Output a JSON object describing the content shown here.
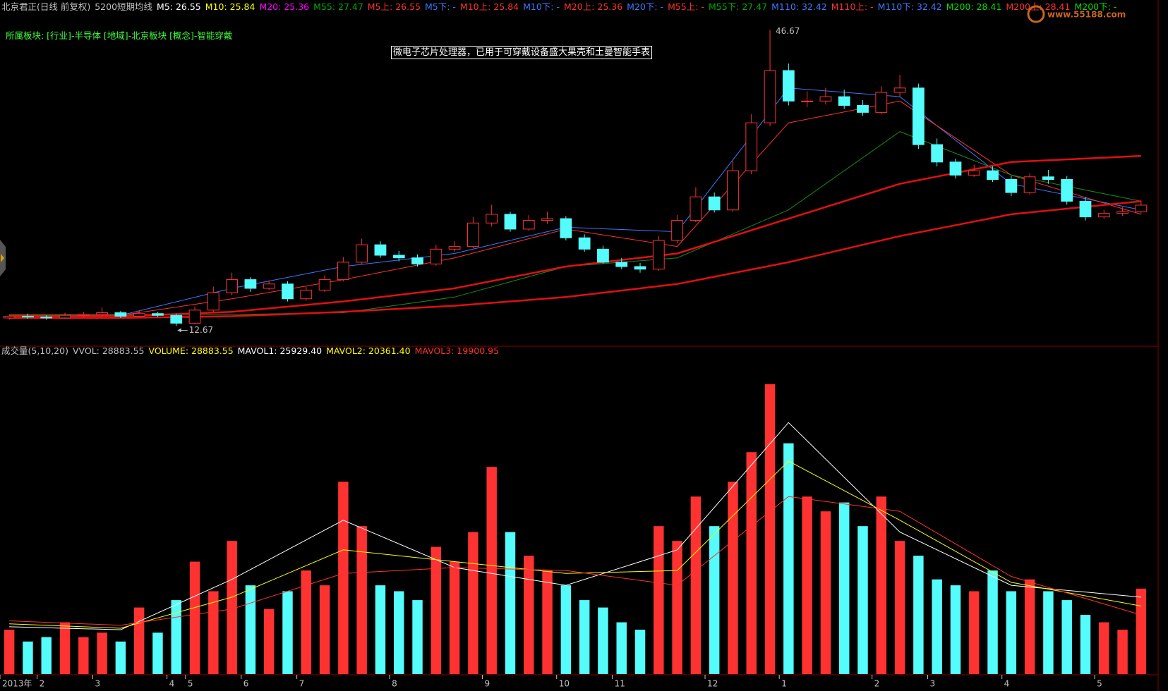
{
  "chart_data": [
    {
      "type": "candlestick",
      "title": "北京君正(日线 前复权)",
      "subtitle": "5200短期均线",
      "title_color": "#c0c0c0",
      "indicators": [
        {
          "text": "M5: 26.55",
          "color": "#ffffff"
        },
        {
          "text": "M10: 25.84",
          "color": "#ffff00"
        },
        {
          "text": "M20: 25.36",
          "color": "#ff00ff"
        },
        {
          "text": "M55: 27.47",
          "color": "#00aa00"
        },
        {
          "text": "M5上: 26.55",
          "color": "#ff3232"
        },
        {
          "text": "M5下: -",
          "color": "#3c78ff"
        },
        {
          "text": "M10上: 25.84",
          "color": "#ff3232"
        },
        {
          "text": "M10下: -",
          "color": "#3c78ff"
        },
        {
          "text": "M20上: 25.36",
          "color": "#ff3232"
        },
        {
          "text": "M20下: -",
          "color": "#3c78ff"
        },
        {
          "text": "M55上: -",
          "color": "#ff3232"
        },
        {
          "text": "M55下: 27.47",
          "color": "#00aa00"
        },
        {
          "text": "M110: 32.42",
          "color": "#3c78ff"
        },
        {
          "text": "M110上: -",
          "color": "#ff3232"
        },
        {
          "text": "M110下: 32.42",
          "color": "#3c78ff"
        },
        {
          "text": "M200: 28.41",
          "color": "#00dd00"
        },
        {
          "text": "M200上: 28.41",
          "color": "#ff3232"
        },
        {
          "text": "M200下: -",
          "color": "#00dd00"
        }
      ],
      "sector": "所属板块: [行业]-半导体 [地域]-北京板块 [概念]-智能穿戴",
      "sector_color": "#3cff3c",
      "note": "微电子芯片处理器，已用于可穿戴设备盛大果壳和土曼智能手表",
      "high_label": "46.67",
      "low_label": "12.67",
      "watermark": {
        "text": "www.55188.com",
        "color": "#c8641e"
      },
      "up_color": "#ff3232",
      "down_color": "#54fcfc",
      "ylim": [
        10.6,
        48.4
      ],
      "open": [
        13.6,
        13.8,
        13.7,
        13.6,
        13.9,
        14.0,
        14.2,
        13.8,
        14.1,
        13.9,
        13.0,
        14.5,
        16.5,
        18.0,
        17.0,
        17.5,
        15.8,
        16.8,
        18.0,
        20.0,
        22.0,
        20.8,
        20.5,
        19.8,
        21.5,
        21.8,
        24.5,
        25.5,
        23.8,
        24.8,
        25.0,
        22.8,
        21.5,
        20.0,
        19.5,
        19.2,
        22.5,
        24.8,
        27.5,
        26.0,
        30.5,
        36.0,
        42.0,
        38.5,
        38.5,
        39.0,
        38.0,
        37.2,
        39.5,
        40.0,
        33.5,
        31.5,
        30.0,
        30.5,
        29.5,
        28.0,
        29.8,
        29.5,
        27.0,
        25.2,
        25.6,
        25.8
      ],
      "high": [
        14.0,
        14.1,
        13.9,
        14.2,
        14.3,
        14.8,
        14.4,
        14.5,
        14.3,
        14.1,
        14.9,
        17.2,
        18.8,
        18.3,
        17.9,
        17.8,
        17.2,
        18.5,
        20.6,
        22.7,
        22.4,
        21.3,
        20.9,
        22.0,
        22.4,
        25.2,
        26.6,
        25.8,
        25.4,
        25.8,
        25.3,
        23.2,
        21.9,
        20.5,
        19.9,
        23.0,
        25.4,
        28.6,
        28.0,
        31.6,
        37.0,
        46.67,
        42.8,
        39.6,
        40.0,
        39.8,
        38.6,
        40.2,
        41.5,
        40.5,
        34.2,
        31.9,
        31.2,
        31.0,
        29.9,
        30.2,
        30.6,
        29.9,
        27.5,
        26.0,
        26.3,
        27.0
      ],
      "low": [
        13.4,
        13.5,
        13.4,
        13.5,
        13.7,
        13.8,
        13.6,
        13.7,
        13.7,
        12.67,
        12.9,
        14.3,
        16.2,
        16.6,
        16.8,
        15.5,
        15.6,
        16.6,
        17.8,
        19.8,
        20.5,
        20.1,
        19.5,
        19.6,
        21.2,
        21.6,
        24.1,
        23.5,
        23.6,
        24.4,
        22.5,
        21.2,
        19.8,
        19.2,
        18.8,
        19.0,
        22.2,
        24.6,
        25.7,
        25.8,
        30.1,
        35.6,
        38.0,
        37.8,
        38.1,
        37.6,
        36.8,
        37.0,
        39.0,
        33.0,
        31.0,
        29.6,
        29.8,
        29.2,
        27.6,
        27.8,
        29.0,
        26.6,
        24.8,
        25.0,
        25.3,
        25.6
      ],
      "close": [
        13.8,
        13.7,
        13.6,
        13.9,
        14.0,
        14.2,
        13.8,
        14.1,
        13.9,
        13.0,
        14.5,
        16.5,
        18.0,
        17.0,
        17.5,
        15.8,
        16.8,
        18.0,
        20.0,
        22.0,
        20.8,
        20.5,
        19.8,
        21.5,
        21.8,
        24.5,
        25.5,
        23.8,
        24.8,
        25.0,
        22.8,
        21.5,
        20.0,
        19.5,
        19.2,
        22.5,
        24.8,
        27.5,
        26.0,
        30.5,
        36.0,
        42.0,
        38.5,
        38.5,
        39.0,
        38.0,
        37.2,
        39.5,
        40.0,
        33.5,
        31.5,
        30.0,
        30.5,
        29.5,
        28.0,
        29.8,
        29.5,
        27.0,
        25.2,
        25.6,
        25.8,
        26.55
      ],
      "series": [
        {
          "color": "#3c78ff",
          "line_width": 1,
          "x": [
            0,
            6,
            12,
            18,
            24,
            30,
            36,
            42,
            48,
            54,
            61
          ],
          "values": [
            13.8,
            13.9,
            17.0,
            19.5,
            21.0,
            24.0,
            23.5,
            40.0,
            39.0,
            29.0,
            26.0
          ]
        },
        {
          "color": "#ff3232",
          "line_width": 1,
          "x": [
            0,
            6,
            12,
            18,
            24,
            30,
            36,
            42,
            48,
            54,
            61
          ],
          "values": [
            13.9,
            13.9,
            15.8,
            18.0,
            20.5,
            23.8,
            21.8,
            36.0,
            38.5,
            30.0,
            25.5
          ]
        },
        {
          "color": "#1a8a1a",
          "line_width": 1,
          "x": [
            0,
            6,
            12,
            18,
            24,
            30,
            36,
            42,
            48,
            54,
            61
          ],
          "values": [
            14.0,
            14.0,
            14.0,
            14.2,
            16.0,
            19.5,
            20.5,
            26.0,
            35.0,
            30.0,
            27.0
          ]
        },
        {
          "color": "#e01010",
          "line_width": 2.5,
          "x": [
            0,
            6,
            12,
            18,
            24,
            30,
            36,
            42,
            48,
            54,
            61
          ],
          "values": [
            13.8,
            13.8,
            14.3,
            15.5,
            17.0,
            19.5,
            21.0,
            25.0,
            29.0,
            31.5,
            32.2
          ]
        },
        {
          "color": "#e01010",
          "line_width": 2.5,
          "x": [
            0,
            6,
            12,
            18,
            24,
            30,
            36,
            42,
            48,
            54,
            61
          ],
          "values": [
            13.6,
            13.6,
            13.8,
            14.3,
            15.0,
            16.0,
            17.5,
            20.0,
            23.0,
            25.5,
            27.0
          ]
        }
      ]
    },
    {
      "type": "bar",
      "title": "成交量(5,10,20)",
      "title_color": "#c0c0c0",
      "indicators": [
        {
          "text": "VVOL: 28883.55",
          "color": "#c0c0c0"
        },
        {
          "text": "VOLUME: 28883.55",
          "color": "#ffff00"
        },
        {
          "text": "MAVOL1: 25929.40",
          "color": "#ffffff"
        },
        {
          "text": "MAVOL2: 20361.40",
          "color": "#ffff00"
        },
        {
          "text": "MAVOL3: 19900.95",
          "color": "#ff3232"
        }
      ],
      "categories": [
        "2013年",
        null,
        "2",
        null,
        null,
        "3",
        null,
        null,
        null,
        "4",
        "5",
        null,
        null,
        "6",
        null,
        null,
        "7",
        null,
        null,
        null,
        null,
        "8",
        null,
        null,
        null,
        null,
        "9",
        null,
        null,
        null,
        "10",
        null,
        null,
        "11",
        null,
        null,
        null,
        null,
        "12",
        null,
        null,
        null,
        "1",
        null,
        null,
        null,
        null,
        "2",
        null,
        null,
        "3",
        null,
        null,
        null,
        "4",
        null,
        null,
        null,
        null,
        "5",
        null,
        null
      ],
      "axis_color": "#c0c0c0",
      "ylim": [
        0,
        107000
      ],
      "values": [
        15000,
        11000,
        12500,
        17500,
        12500,
        14000,
        11000,
        22500,
        14000,
        25000,
        38000,
        28000,
        45000,
        30000,
        22000,
        28000,
        35000,
        30000,
        65000,
        50000,
        30000,
        28000,
        25000,
        43000,
        38000,
        48000,
        70000,
        48000,
        40000,
        35000,
        30000,
        25000,
        22500,
        17500,
        15000,
        50000,
        45000,
        60000,
        50000,
        65000,
        75000,
        98000,
        78000,
        60000,
        55000,
        58000,
        50000,
        60000,
        45000,
        40000,
        32000,
        30000,
        28000,
        35000,
        28000,
        32000,
        28000,
        25000,
        20000,
        17500,
        15000,
        28883.55
      ],
      "series": [
        {
          "color": "#ffffff",
          "line_width": 1,
          "x": [
            0,
            6,
            12,
            18,
            24,
            30,
            36,
            42,
            48,
            54,
            61
          ],
          "values": [
            16000,
            15000,
            32000,
            52000,
            36000,
            30000,
            42000,
            85000,
            48000,
            30000,
            26000
          ]
        },
        {
          "color": "#ffff00",
          "line_width": 1,
          "x": [
            0,
            6,
            12,
            18,
            24,
            30,
            36,
            42,
            48,
            54,
            61
          ],
          "values": [
            17000,
            15500,
            26000,
            42000,
            38000,
            34000,
            35000,
            72000,
            52000,
            31000,
            23000
          ]
        },
        {
          "color": "#ff3232",
          "line_width": 1,
          "x": [
            0,
            6,
            12,
            18,
            24,
            30,
            36,
            42,
            48,
            54,
            61
          ],
          "values": [
            18000,
            16500,
            22000,
            34000,
            36000,
            35000,
            30000,
            60000,
            55000,
            33000,
            20000
          ]
        }
      ]
    }
  ]
}
